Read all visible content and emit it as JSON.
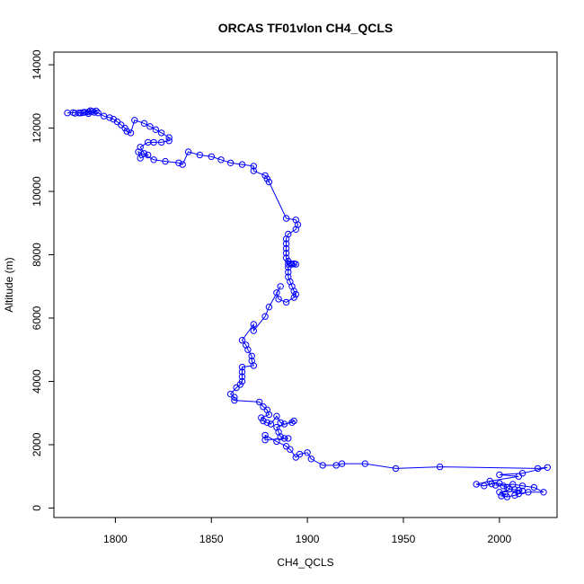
{
  "chart_data": {
    "type": "scatter",
    "title": "ORCAS TF01vlon CH4_QCLS",
    "xlabel": "CH4_QCLS",
    "ylabel": "Altitude (m)",
    "xlim": [
      1768,
      2030
    ],
    "ylim": [
      -300,
      14400
    ],
    "xticks": [
      1800,
      1850,
      1900,
      1950,
      2000
    ],
    "yticks": [
      0,
      2000,
      4000,
      6000,
      8000,
      10000,
      12000,
      14000
    ],
    "grid": false,
    "marker": "open-circle",
    "lines_connecting_points": true,
    "series_color": "#0000ff",
    "series": [
      {
        "points": [
          [
            1775,
            12480
          ],
          [
            1778,
            12490
          ],
          [
            1781,
            12480
          ],
          [
            1784,
            12500
          ],
          [
            1786,
            12510
          ],
          [
            1788,
            12530
          ],
          [
            1790,
            12540
          ],
          [
            1789,
            12500
          ],
          [
            1786,
            12460
          ],
          [
            1782,
            12480
          ],
          [
            1779,
            12470
          ],
          [
            1783,
            12490
          ],
          [
            1787,
            12550
          ],
          [
            1791,
            12480
          ],
          [
            1794,
            12380
          ],
          [
            1797,
            12330
          ],
          [
            1799,
            12280
          ],
          [
            1801,
            12200
          ],
          [
            1803,
            12100
          ],
          [
            1805,
            12000
          ],
          [
            1806,
            11900
          ],
          [
            1808,
            11850
          ],
          [
            1810,
            12250
          ],
          [
            1815,
            12150
          ],
          [
            1818,
            12050
          ],
          [
            1821,
            11950
          ],
          [
            1824,
            11850
          ],
          [
            1828,
            11700
          ],
          [
            1828,
            11600
          ],
          [
            1824,
            11550
          ],
          [
            1820,
            11550
          ],
          [
            1817,
            11550
          ],
          [
            1813,
            11400
          ],
          [
            1815,
            11200
          ],
          [
            1817,
            11150
          ],
          [
            1813,
            11050
          ],
          [
            1812,
            11250
          ],
          [
            1820,
            11000
          ],
          [
            1826,
            10950
          ],
          [
            1833,
            10900
          ],
          [
            1835,
            10850
          ],
          [
            1838,
            11250
          ],
          [
            1844,
            11150
          ],
          [
            1850,
            11100
          ],
          [
            1855,
            11000
          ],
          [
            1860,
            10900
          ],
          [
            1866,
            10850
          ],
          [
            1872,
            10800
          ],
          [
            1872,
            10650
          ],
          [
            1878,
            10500
          ],
          [
            1879,
            10400
          ],
          [
            1880,
            10300
          ],
          [
            1889,
            9150
          ],
          [
            1894,
            9100
          ],
          [
            1895,
            8950
          ],
          [
            1894,
            8800
          ],
          [
            1890,
            8650
          ],
          [
            1889,
            8500
          ],
          [
            1889,
            8350
          ],
          [
            1889,
            8200
          ],
          [
            1889,
            8050
          ],
          [
            1889,
            7900
          ],
          [
            1890,
            7800
          ],
          [
            1890,
            7700
          ],
          [
            1891,
            7720
          ],
          [
            1892,
            7700
          ],
          [
            1893,
            7720
          ],
          [
            1894,
            7700
          ],
          [
            1890,
            7600
          ],
          [
            1890,
            7450
          ],
          [
            1890,
            7300
          ],
          [
            1891,
            7150
          ],
          [
            1892,
            7000
          ],
          [
            1893,
            6850
          ],
          [
            1894,
            6750
          ],
          [
            1893,
            6650
          ],
          [
            1889,
            6500
          ],
          [
            1885,
            6600
          ],
          [
            1884,
            6800
          ],
          [
            1886,
            7000
          ],
          [
            1880,
            6350
          ],
          [
            1878,
            6050
          ],
          [
            1872,
            5600
          ],
          [
            1872,
            5800
          ],
          [
            1866,
            5300
          ],
          [
            1868,
            5150
          ],
          [
            1869,
            5000
          ],
          [
            1871,
            4800
          ],
          [
            1871,
            4650
          ],
          [
            1872,
            4500
          ],
          [
            1866,
            4450
          ],
          [
            1866,
            4300
          ],
          [
            1866,
            4150
          ],
          [
            1866,
            4000
          ],
          [
            1865,
            3900
          ],
          [
            1863,
            3800
          ],
          [
            1860,
            3600
          ],
          [
            1862,
            3500
          ],
          [
            1862,
            3400
          ],
          [
            1875,
            3350
          ],
          [
            1877,
            3200
          ],
          [
            1879,
            3100
          ],
          [
            1880,
            2950
          ],
          [
            1876,
            2850
          ],
          [
            1877,
            2750
          ],
          [
            1879,
            2700
          ],
          [
            1881,
            2650
          ],
          [
            1884,
            2900
          ],
          [
            1886,
            2700
          ],
          [
            1888,
            2650
          ],
          [
            1892,
            2700
          ],
          [
            1893,
            2750
          ],
          [
            1884,
            2550
          ],
          [
            1885,
            2400
          ],
          [
            1886,
            2250
          ],
          [
            1888,
            2200
          ],
          [
            1890,
            2200
          ],
          [
            1878,
            2150
          ],
          [
            1878,
            2300
          ],
          [
            1884,
            2100
          ],
          [
            1889,
            1950
          ],
          [
            1891,
            1850
          ],
          [
            1894,
            1600
          ],
          [
            1896,
            1700
          ],
          [
            1900,
            1750
          ],
          [
            1902,
            1550
          ],
          [
            1908,
            1350
          ],
          [
            1915,
            1350
          ],
          [
            1918,
            1400
          ],
          [
            1930,
            1400
          ],
          [
            1946,
            1250
          ],
          [
            1969,
            1300
          ],
          [
            2020,
            1250
          ],
          [
            2025,
            1280
          ],
          [
            2012,
            1100
          ],
          [
            2000,
            1050
          ],
          [
            2010,
            1000
          ],
          [
            1995,
            850
          ],
          [
            1988,
            750
          ],
          [
            1992,
            700
          ],
          [
            1996,
            760
          ],
          [
            2000,
            780
          ],
          [
            2002,
            700
          ],
          [
            2004,
            650
          ],
          [
            2005,
            600
          ],
          [
            2008,
            580
          ],
          [
            2010,
            560
          ],
          [
            2012,
            540
          ],
          [
            2000,
            500
          ],
          [
            2003,
            450
          ],
          [
            2001,
            380
          ],
          [
            2004,
            350
          ],
          [
            2008,
            400
          ],
          [
            2010,
            450
          ],
          [
            2015,
            500
          ],
          [
            2023,
            500
          ],
          [
            2018,
            650
          ],
          [
            2012,
            700
          ],
          [
            2007,
            750
          ],
          [
            1998,
            720
          ]
        ]
      }
    ]
  }
}
